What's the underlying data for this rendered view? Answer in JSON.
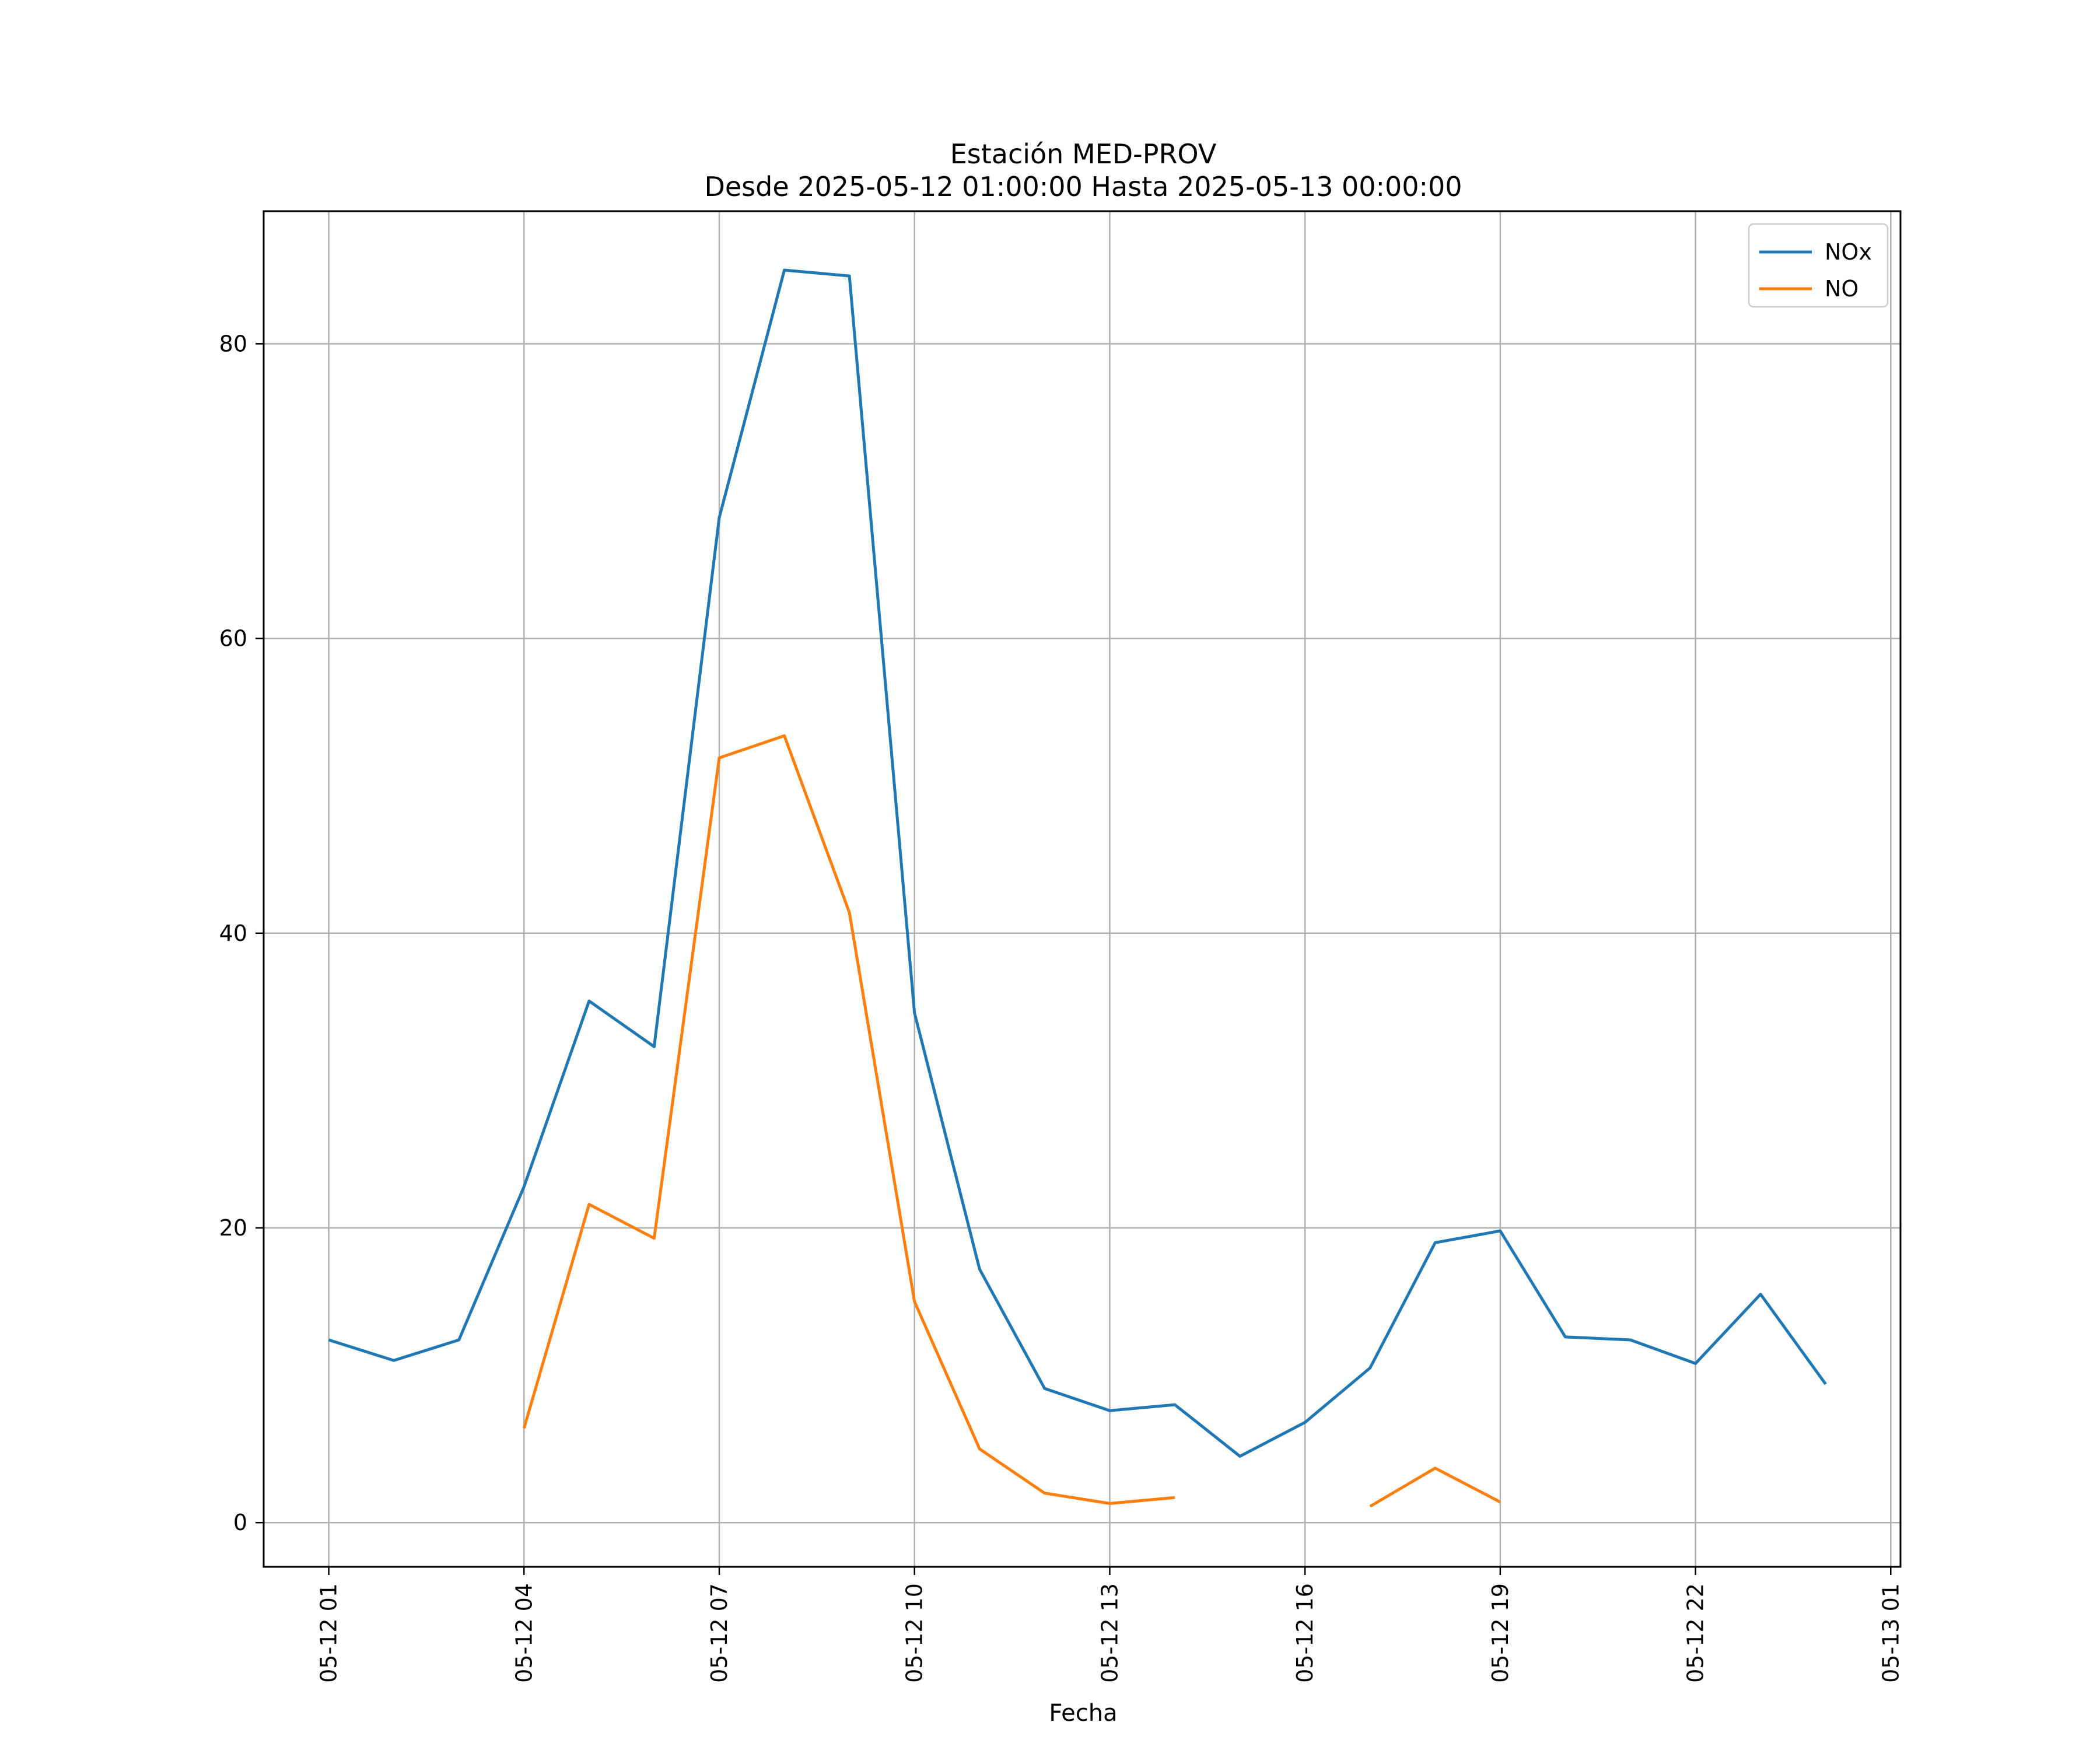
{
  "chart_data": {
    "type": "line",
    "title_line1": "Estación MED-PROV",
    "title_line2": "Desde 2025-05-12 01:00:00 Hasta 2025-05-13 00:00:00",
    "xlabel": "Fecha",
    "ylabel": "",
    "x_hours": [
      "2025-05-12 01:00",
      "2025-05-12 02:00",
      "2025-05-12 03:00",
      "2025-05-12 04:00",
      "2025-05-12 05:00",
      "2025-05-12 06:00",
      "2025-05-12 07:00",
      "2025-05-12 08:00",
      "2025-05-12 09:00",
      "2025-05-12 10:00",
      "2025-05-12 11:00",
      "2025-05-12 12:00",
      "2025-05-12 13:00",
      "2025-05-12 14:00",
      "2025-05-12 15:00",
      "2025-05-12 16:00",
      "2025-05-12 17:00",
      "2025-05-12 18:00",
      "2025-05-12 19:00",
      "2025-05-12 20:00",
      "2025-05-12 21:00",
      "2025-05-12 22:00",
      "2025-05-12 23:00",
      "2025-05-13 00:00"
    ],
    "series": [
      {
        "name": "NOx",
        "color": "#1f77b4",
        "values": [
          12.4,
          11.0,
          12.4,
          22.8,
          35.4,
          32.3,
          68.2,
          85.0,
          84.6,
          34.6,
          17.2,
          9.1,
          7.6,
          8.0,
          4.5,
          6.8,
          10.5,
          19.0,
          19.8,
          12.6,
          12.4,
          10.8,
          15.5,
          9.4
        ]
      },
      {
        "name": "NO",
        "color": "#ff7f0e",
        "values": [
          null,
          null,
          null,
          6.4,
          21.6,
          19.3,
          51.9,
          53.4,
          41.4,
          15.0,
          5.0,
          2.0,
          1.3,
          1.7,
          null,
          null,
          1.1,
          3.7,
          1.4,
          null,
          null,
          null,
          null,
          null
        ]
      }
    ],
    "xticks": [
      "05-12 01",
      "05-12 04",
      "05-12 07",
      "05-12 10",
      "05-12 13",
      "05-12 16",
      "05-12 19",
      "05-12 22",
      "05-13 01"
    ],
    "yticks": [
      "0",
      "20",
      "40",
      "60",
      "80"
    ],
    "ylim": [
      -3,
      89
    ],
    "xlim": [
      "2025-05-12 00:00",
      "2025-05-13 01:09"
    ],
    "grid": true,
    "legend_position": "upper right",
    "grid_color": "#b0b0b0"
  }
}
